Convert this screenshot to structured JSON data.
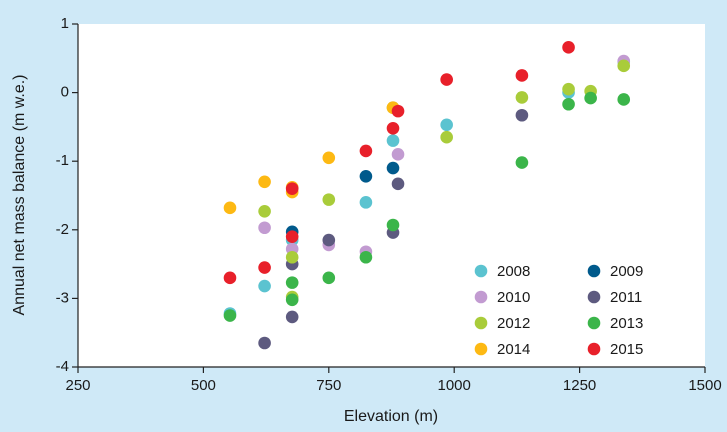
{
  "chart_data": {
    "type": "scatter",
    "x_label": "Elevation (m)",
    "y_label": "Annual net mass balance (m w.e.)",
    "xlim": [
      250,
      1500
    ],
    "xticks": [
      250,
      500,
      750,
      1000,
      1250,
      1500
    ],
    "ylim": [
      -4,
      1
    ],
    "yticks": [
      -4,
      -3,
      -2,
      -1,
      0,
      1
    ],
    "grid": false,
    "legend": {
      "position": "lower right",
      "columns": 2
    },
    "series": [
      {
        "name": "2008",
        "color": "#5bc3d0",
        "x": [
          553,
          622,
          677,
          824,
          878,
          985,
          1228,
          1338
        ],
        "values": [
          -3.22,
          -2.82,
          -2.15,
          -1.6,
          -0.7,
          -0.47,
          0.0,
          0.45
        ]
      },
      {
        "name": "2009",
        "color": "#005a8c",
        "x": [
          677,
          824,
          878
        ],
        "values": [
          -2.03,
          -1.22,
          -1.1
        ]
      },
      {
        "name": "2010",
        "color": "#c29bd1",
        "x": [
          622,
          677,
          750,
          824,
          888,
          1338
        ],
        "values": [
          -1.97,
          -2.28,
          -2.22,
          -2.32,
          -0.9,
          0.46
        ]
      },
      {
        "name": "2011",
        "color": "#5d5a7f",
        "x": [
          622,
          677,
          677,
          750,
          878,
          888,
          1135
        ],
        "values": [
          -3.65,
          -3.27,
          -2.5,
          -2.15,
          -2.04,
          -1.33,
          -0.33
        ]
      },
      {
        "name": "2012",
        "color": "#a9cc3a",
        "x": [
          622,
          677,
          677,
          750,
          878,
          985,
          1135,
          1228,
          1272,
          1338
        ],
        "values": [
          -1.73,
          -2.4,
          -2.98,
          -1.56,
          -0.22,
          -0.65,
          -0.07,
          0.05,
          0.02,
          0.39
        ]
      },
      {
        "name": "2013",
        "color": "#3bb54a",
        "x": [
          553,
          677,
          677,
          750,
          824,
          878,
          1135,
          1228,
          1272,
          1338
        ],
        "values": [
          -3.25,
          -2.77,
          -3.02,
          -2.7,
          -2.4,
          -1.93,
          -1.02,
          -0.17,
          -0.08,
          -0.1
        ]
      },
      {
        "name": "2014",
        "color": "#fdb913",
        "x": [
          553,
          622,
          677,
          677,
          750,
          878
        ],
        "values": [
          -1.68,
          -1.3,
          -1.38,
          -1.45,
          -0.95,
          -0.22
        ]
      },
      {
        "name": "2015",
        "color": "#e8202a",
        "x": [
          553,
          622,
          677,
          677,
          824,
          878,
          888,
          985,
          1135,
          1228
        ],
        "values": [
          -2.7,
          -2.55,
          -1.4,
          -2.1,
          -0.85,
          -0.52,
          -0.27,
          0.19,
          0.25,
          0.66
        ]
      }
    ]
  }
}
